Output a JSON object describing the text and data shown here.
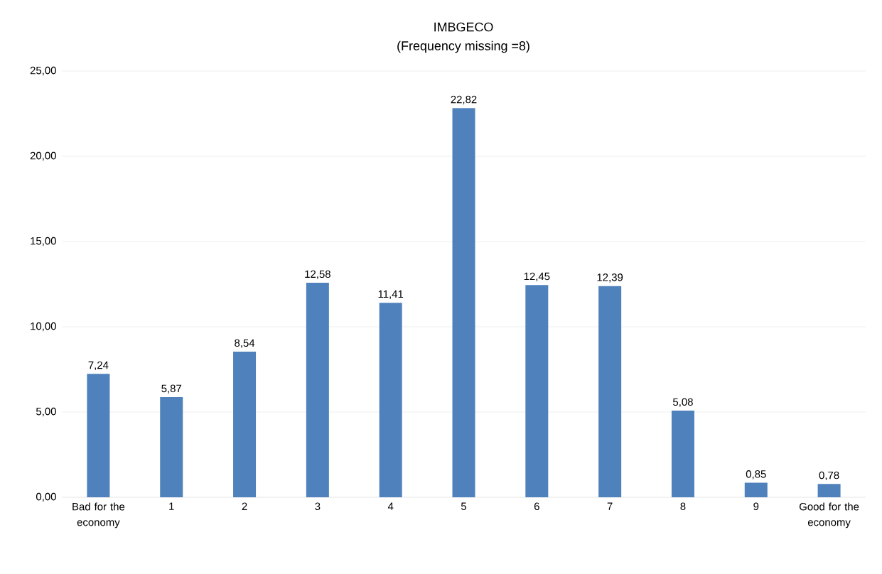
{
  "chart_data": {
    "type": "bar",
    "title": "IMBGECO",
    "subtitle": "(Frequency missing =8)",
    "categories": [
      "Bad for the economy",
      "1",
      "2",
      "3",
      "4",
      "5",
      "6",
      "7",
      "8",
      "9",
      "Good for the economy"
    ],
    "values": [
      7.24,
      5.87,
      8.54,
      12.58,
      11.41,
      22.82,
      12.45,
      12.39,
      5.08,
      0.85,
      0.78
    ],
    "value_labels": [
      "7,24",
      "5,87",
      "8,54",
      "12,58",
      "11,41",
      "22,82",
      "12,45",
      "12,39",
      "5,08",
      "0,85",
      "0,78"
    ],
    "color": "#4f81bd",
    "ylim": [
      0,
      25
    ],
    "yticks": [
      {
        "value": 0,
        "label": "0,00"
      },
      {
        "value": 5,
        "label": "5,00"
      },
      {
        "value": 10,
        "label": "10,00"
      },
      {
        "value": 15,
        "label": "15,00"
      },
      {
        "value": 20,
        "label": "20,00"
      },
      {
        "value": 25,
        "label": "25,00"
      }
    ],
    "grid": "y"
  }
}
